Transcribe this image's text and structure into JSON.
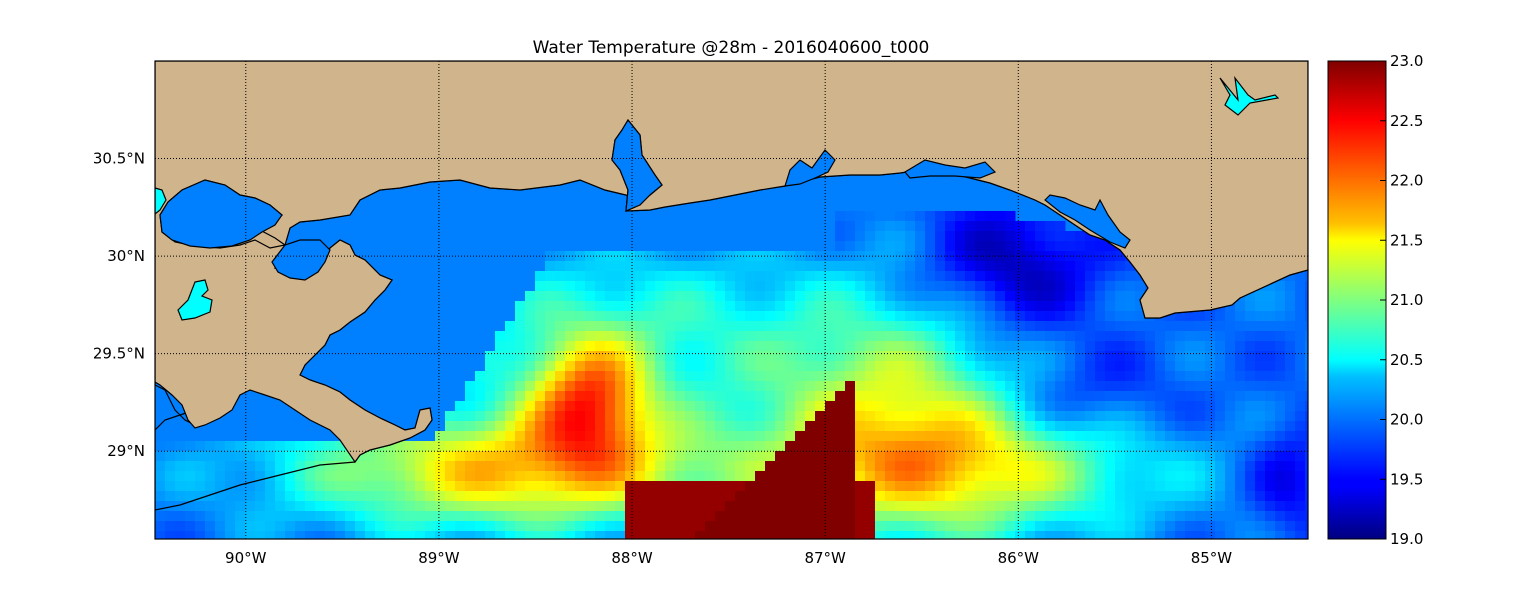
{
  "title": "Water Temperature @28m - 2016040600_t000",
  "map": {
    "lon_range": [
      -90.47,
      -84.5
    ],
    "lat_range": [
      28.55,
      31.0
    ],
    "grid": true,
    "x_ticks": [
      {
        "value": -90,
        "label": "90°W"
      },
      {
        "value": -89,
        "label": "89°W"
      },
      {
        "value": -88,
        "label": "88°W"
      },
      {
        "value": -87,
        "label": "87°W"
      },
      {
        "value": -86,
        "label": "86°W"
      },
      {
        "value": -85,
        "label": "85°W"
      }
    ],
    "y_ticks": [
      {
        "value": 30.5,
        "label": "30.5°N"
      },
      {
        "value": 30.0,
        "label": "30°N"
      },
      {
        "value": 29.5,
        "label": "29.5°N"
      },
      {
        "value": 29.0,
        "label": "29°N"
      }
    ]
  },
  "colorbar": {
    "min": 19.0,
    "max": 23.0,
    "colormap": "jet",
    "tick_labels": [
      "19.0",
      "19.5",
      "20.0",
      "20.5",
      "21.0",
      "21.5",
      "22.0",
      "22.5",
      "23.0"
    ]
  },
  "colors": {
    "land": "#d0b48c",
    "inland_water": "#00ffff",
    "water_default": "#0080ff"
  }
}
